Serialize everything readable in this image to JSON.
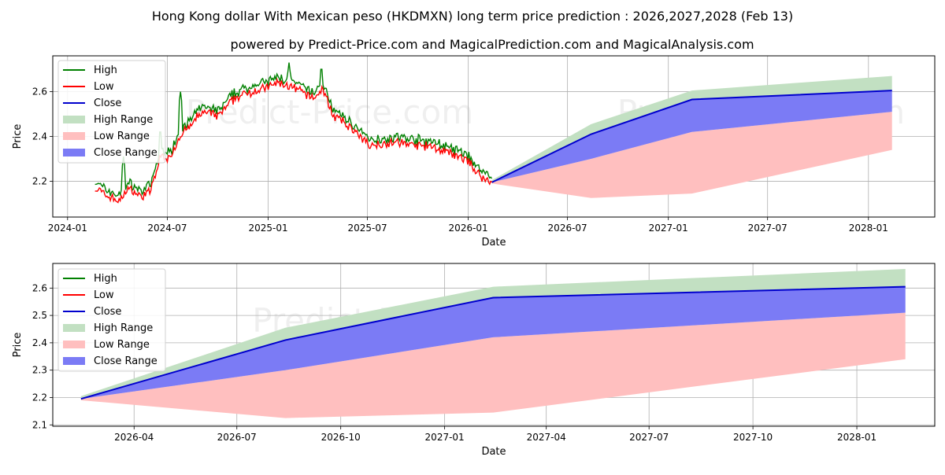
{
  "chart_data": [
    {
      "type": "line",
      "title": "Hong Kong dollar With Mexican peso (HKDMXN) long term price prediction : 2026,2027,2028 (Feb 13)",
      "subtitle": "powered by Predict-Price.com and MagicalPrediction.com and MagicalAnalysis.com",
      "watermark": "Predict-Price.com",
      "xlabel": "Date",
      "ylabel": "Price",
      "xlim": [
        "2023-12-05",
        "2028-05-01"
      ],
      "ylim": [
        2.04,
        2.76
      ],
      "xticks": [
        {
          "date": "2024-01-01",
          "label": "2024-01"
        },
        {
          "date": "2024-07-01",
          "label": "2024-07"
        },
        {
          "date": "2025-01-01",
          "label": "2025-01"
        },
        {
          "date": "2025-07-01",
          "label": "2025-07"
        },
        {
          "date": "2026-01-01",
          "label": "2026-01"
        },
        {
          "date": "2026-07-01",
          "label": "2026-07"
        },
        {
          "date": "2027-01-01",
          "label": "2027-01"
        },
        {
          "date": "2027-07-01",
          "label": "2027-07"
        },
        {
          "date": "2028-01-01",
          "label": "2028-01"
        }
      ],
      "yticks": [
        {
          "value": 2.2,
          "label": "2.2"
        },
        {
          "value": 2.4,
          "label": "2.4"
        },
        {
          "value": 2.6,
          "label": "2.6"
        }
      ],
      "legend": [
        "High",
        "Low",
        "Close",
        "High Range",
        "Low Range",
        "Close Range"
      ],
      "history_anchors": {
        "dates": [
          "2024-02-20",
          "2024-03-10",
          "2024-04-05",
          "2024-04-20",
          "2024-05-15",
          "2024-06-01",
          "2024-06-20",
          "2024-07-05",
          "2024-07-25",
          "2024-08-10",
          "2024-09-01",
          "2024-10-01",
          "2024-11-01",
          "2024-12-01",
          "2025-01-01",
          "2025-01-20",
          "2025-02-10",
          "2025-03-01",
          "2025-03-25",
          "2025-04-10",
          "2025-05-01",
          "2025-06-01",
          "2025-06-20",
          "2025-07-10",
          "2025-08-01",
          "2025-09-01",
          "2025-10-01",
          "2025-11-01",
          "2025-12-01",
          "2026-01-01",
          "2026-01-20",
          "2026-02-13"
        ],
        "close": [
          2.18,
          2.15,
          2.12,
          2.18,
          2.14,
          2.17,
          2.33,
          2.31,
          2.42,
          2.45,
          2.52,
          2.5,
          2.58,
          2.61,
          2.63,
          2.65,
          2.63,
          2.61,
          2.58,
          2.62,
          2.5,
          2.45,
          2.4,
          2.37,
          2.38,
          2.38,
          2.37,
          2.36,
          2.33,
          2.3,
          2.24,
          2.2
        ],
        "high_spikes": [
          {
            "date": "2024-04-12",
            "value": 2.31
          },
          {
            "date": "2024-06-18",
            "value": 2.44
          },
          {
            "date": "2024-07-25",
            "value": 2.6
          },
          {
            "date": "2025-02-08",
            "value": 2.73
          },
          {
            "date": "2025-04-08",
            "value": 2.72
          }
        ]
      },
      "forecast": {
        "dates": [
          "2026-02-13",
          "2026-08-13",
          "2027-02-13",
          "2028-02-13"
        ],
        "close": [
          2.195,
          2.41,
          2.565,
          2.605
        ],
        "high_range": {
          "upper": [
            2.205,
            2.455,
            2.605,
            2.67
          ],
          "lower": [
            2.195,
            2.41,
            2.565,
            2.605
          ]
        },
        "low_range": {
          "upper": [
            2.195,
            2.3,
            2.42,
            2.51
          ],
          "lower": [
            2.19,
            2.125,
            2.145,
            2.34
          ]
        },
        "close_range": {
          "upper": [
            2.195,
            2.41,
            2.565,
            2.605
          ],
          "lower": [
            2.195,
            2.3,
            2.42,
            2.51
          ]
        }
      },
      "colors": {
        "high": "#008000",
        "low": "#ff0000",
        "close": "#0000cd",
        "high_range": "#c2e0c2",
        "low_range": "#ffbfbf",
        "close_range": "#7b7bf5"
      }
    },
    {
      "type": "area",
      "xlabel": "Date",
      "ylabel": "Price",
      "watermark": "Predict-Price.com",
      "xlim": [
        "2026-01-19",
        "2028-03-10"
      ],
      "ylim": [
        2.095,
        2.69
      ],
      "xticks": [
        {
          "date": "2026-04-01",
          "label": "2026-04"
        },
        {
          "date": "2026-07-01",
          "label": "2026-07"
        },
        {
          "date": "2026-10-01",
          "label": "2026-10"
        },
        {
          "date": "2027-01-01",
          "label": "2027-01"
        },
        {
          "date": "2027-04-01",
          "label": "2027-04"
        },
        {
          "date": "2027-07-01",
          "label": "2027-07"
        },
        {
          "date": "2027-10-01",
          "label": "2027-10"
        },
        {
          "date": "2028-01-01",
          "label": "2028-01"
        }
      ],
      "yticks": [
        {
          "value": 2.1,
          "label": "2.1"
        },
        {
          "value": 2.2,
          "label": "2.2"
        },
        {
          "value": 2.3,
          "label": "2.3"
        },
        {
          "value": 2.4,
          "label": "2.4"
        },
        {
          "value": 2.5,
          "label": "2.5"
        },
        {
          "value": 2.6,
          "label": "2.6"
        }
      ],
      "legend": [
        "High",
        "Low",
        "Close",
        "High Range",
        "Low Range",
        "Close Range"
      ]
    }
  ]
}
